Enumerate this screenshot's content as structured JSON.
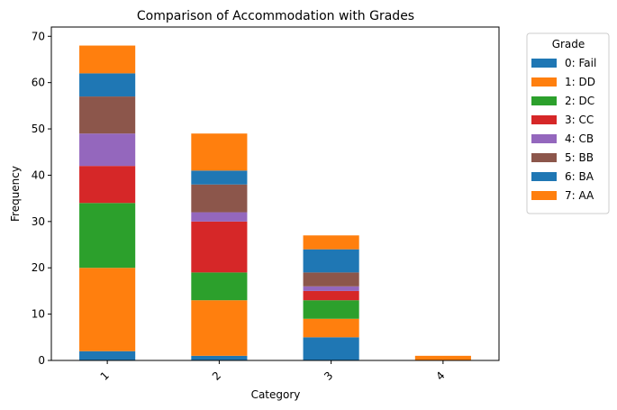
{
  "chart_data": {
    "type": "bar",
    "stacked": true,
    "title": "Comparison of Accommodation with Grades",
    "xlabel": "Category",
    "ylabel": "Frequency",
    "categories": [
      "1",
      "2",
      "3",
      "4"
    ],
    "ylim": [
      0,
      72
    ],
    "yticks": [
      0,
      10,
      20,
      30,
      40,
      50,
      60,
      70
    ],
    "legend_title": "Grade",
    "legend_position": "outside-right",
    "grid": false,
    "series": [
      {
        "name": "0: Fail",
        "color": "#1f77b4",
        "values": [
          2,
          1,
          5,
          0
        ]
      },
      {
        "name": "1: DD",
        "color": "#ff7f0e",
        "values": [
          18,
          12,
          4,
          1
        ]
      },
      {
        "name": "2: DC",
        "color": "#2ca02c",
        "values": [
          14,
          6,
          4,
          0
        ]
      },
      {
        "name": "3: CC",
        "color": "#d62728",
        "values": [
          8,
          11,
          2,
          0
        ]
      },
      {
        "name": "4: CB",
        "color": "#9467bd",
        "values": [
          7,
          2,
          1,
          0
        ]
      },
      {
        "name": "5: BB",
        "color": "#8c564b",
        "values": [
          8,
          6,
          3,
          0
        ]
      },
      {
        "name": "6: BA",
        "color": "#1f77b4",
        "values": [
          5,
          3,
          5,
          0
        ]
      },
      {
        "name": "7: AA",
        "color": "#ff7f0e",
        "values": [
          6,
          8,
          3,
          0
        ]
      }
    ]
  }
}
